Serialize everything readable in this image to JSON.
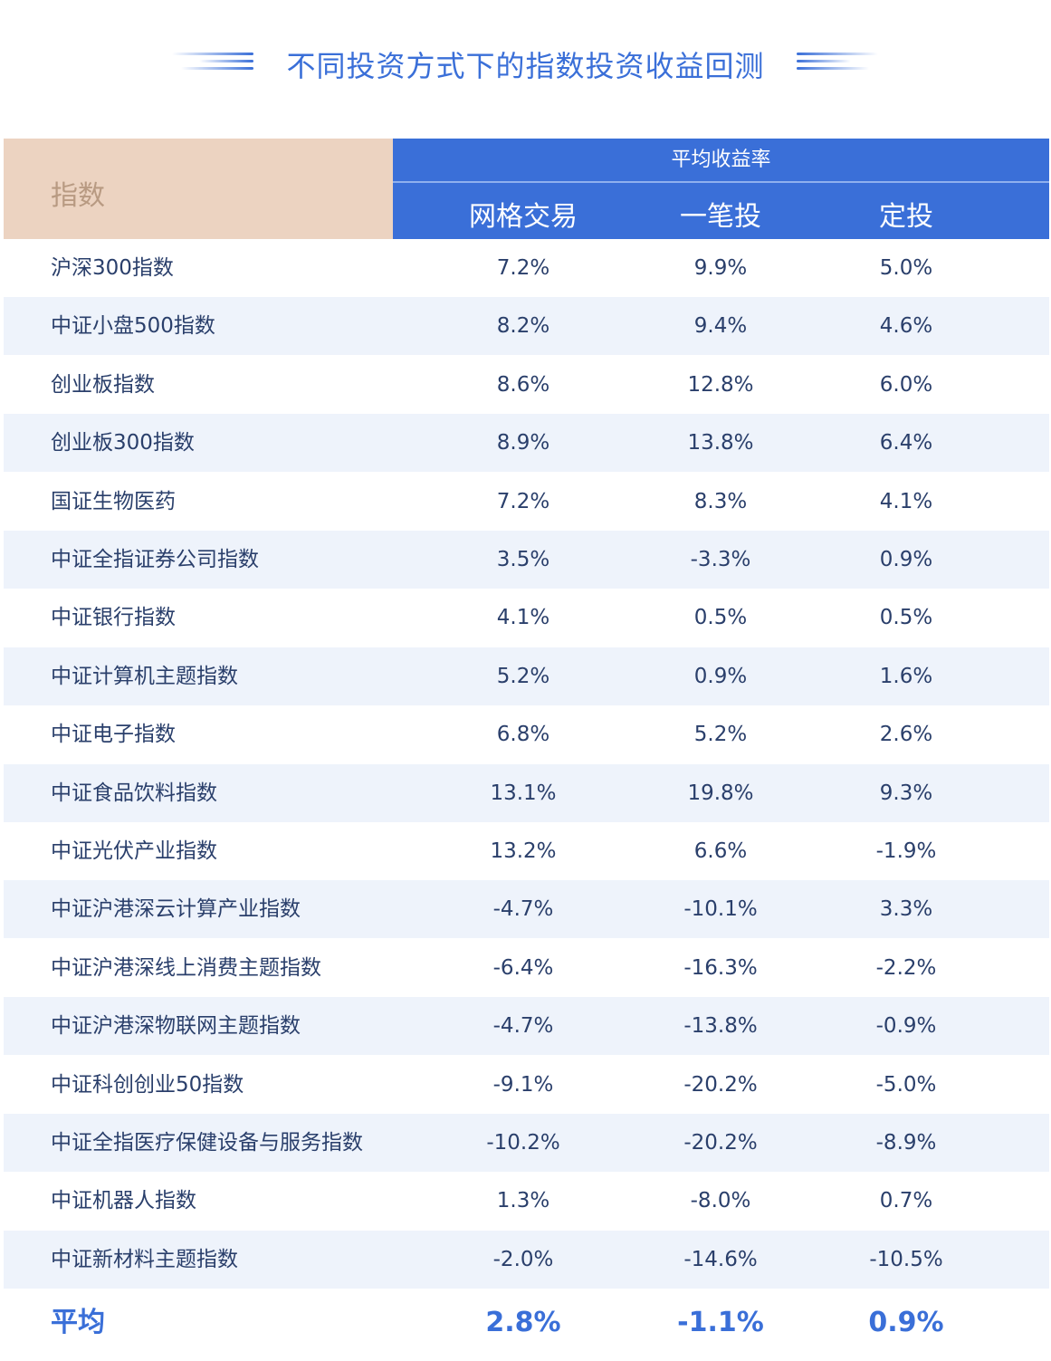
{
  "title": "不同投资方式下的指数投资收益回测",
  "header": {
    "index_label": "指数",
    "group_label": "平均收益率",
    "columns": [
      "网格交易",
      "一笔投",
      "定投"
    ]
  },
  "chart_data": {
    "type": "table",
    "title": "不同投资方式下的指数投资收益回测",
    "columns": [
      "指数",
      "网格交易",
      "一笔投",
      "定投"
    ],
    "rows": [
      {
        "name": "沪深300指数",
        "grid": "7.2%",
        "lump": "9.9%",
        "dca": "5.0%"
      },
      {
        "name": "中证小盘500指数",
        "grid": "8.2%",
        "lump": "9.4%",
        "dca": "4.6%"
      },
      {
        "name": "创业板指数",
        "grid": "8.6%",
        "lump": "12.8%",
        "dca": "6.0%"
      },
      {
        "name": "创业板300指数",
        "grid": "8.9%",
        "lump": "13.8%",
        "dca": "6.4%"
      },
      {
        "name": "国证生物医药",
        "grid": "7.2%",
        "lump": "8.3%",
        "dca": "4.1%"
      },
      {
        "name": "中证全指证券公司指数",
        "grid": "3.5%",
        "lump": "-3.3%",
        "dca": "0.9%"
      },
      {
        "name": "中证银行指数",
        "grid": "4.1%",
        "lump": "0.5%",
        "dca": "0.5%"
      },
      {
        "name": "中证计算机主题指数",
        "grid": "5.2%",
        "lump": "0.9%",
        "dca": "1.6%"
      },
      {
        "name": "中证电子指数",
        "grid": "6.8%",
        "lump": "5.2%",
        "dca": "2.6%"
      },
      {
        "name": "中证食品饮料指数",
        "grid": "13.1%",
        "lump": "19.8%",
        "dca": "9.3%"
      },
      {
        "name": "中证光伏产业指数",
        "grid": "13.2%",
        "lump": "6.6%",
        "dca": "-1.9%"
      },
      {
        "name": "中证沪港深云计算产业指数",
        "grid": "-4.7%",
        "lump": "-10.1%",
        "dca": "3.3%"
      },
      {
        "name": "中证沪港深线上消费主题指数",
        "grid": "-6.4%",
        "lump": "-16.3%",
        "dca": "-2.2%"
      },
      {
        "name": "中证沪港深物联网主题指数",
        "grid": "-4.7%",
        "lump": "-13.8%",
        "dca": "-0.9%"
      },
      {
        "name": "中证科创创业50指数",
        "grid": "-9.1%",
        "lump": "-20.2%",
        "dca": "-5.0%"
      },
      {
        "name": "中证全指医疗保健设备与服务指数",
        "grid": "-10.2%",
        "lump": "-20.2%",
        "dca": "-8.9%"
      },
      {
        "name": "中证机器人指数",
        "grid": "1.3%",
        "lump": "-8.0%",
        "dca": "0.7%"
      },
      {
        "name": "中证新材料主题指数",
        "grid": "-2.0%",
        "lump": "-14.6%",
        "dca": "-10.5%"
      }
    ],
    "average": {
      "name": "平均",
      "grid": "2.8%",
      "lump": "-1.1%",
      "dca": "0.9%"
    }
  },
  "colors": {
    "accent": "#3a6fd8",
    "index_header_bg": "#ecd3c1",
    "index_header_text": "#b89a82",
    "alt_row_bg": "#eef3fb",
    "text": "#2a3f6b"
  }
}
